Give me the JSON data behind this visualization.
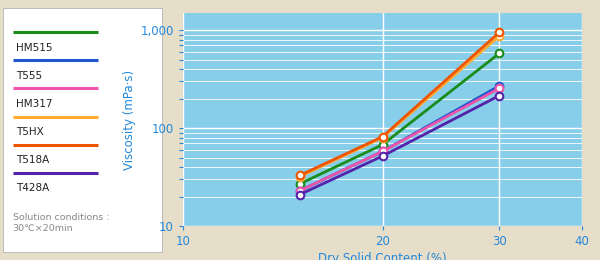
{
  "series": [
    {
      "label": "HM515",
      "color": "#1A8C1A",
      "x": [
        15,
        20,
        30
      ],
      "y": [
        27,
        68,
        580
      ]
    },
    {
      "label": "T555",
      "color": "#2255CC",
      "x": [
        15,
        20,
        30
      ],
      "y": [
        23,
        58,
        270
      ]
    },
    {
      "label": "HM317",
      "color": "#EE55AA",
      "x": [
        15,
        20,
        30
      ],
      "y": [
        23,
        58,
        255
      ]
    },
    {
      "label": "T5HX",
      "color": "#FFAA33",
      "x": [
        15,
        20,
        30
      ],
      "y": [
        32,
        80,
        870
      ]
    },
    {
      "label": "T518A",
      "color": "#EE5500",
      "x": [
        15,
        20,
        30
      ],
      "y": [
        33,
        82,
        950
      ]
    },
    {
      "label": "T428A",
      "color": "#5522AA",
      "x": [
        15,
        20,
        30
      ],
      "y": [
        21,
        52,
        215
      ]
    }
  ],
  "bg_color": "#87CEEB",
  "outer_bg": "#E6DEC8",
  "legend_bg": "#FFFFFF",
  "xlabel": "Dry Solid Content (%)",
  "ylabel": "Viscosity (mPa·s)",
  "xlim": [
    10,
    40
  ],
  "ylim": [
    10,
    1500
  ],
  "solution_note": "Solution conditions :\n30℃×20min",
  "grid_color": "#FFFFFF",
  "tick_color": "#2288DD",
  "axis_label_color": "#2288DD",
  "legend_entries": [
    [
      "HM515",
      "#1A8C1A"
    ],
    [
      "T555",
      "#2255CC"
    ],
    [
      "HM317",
      "#EE55AA"
    ],
    [
      "T5HX",
      "#FFAA33"
    ],
    [
      "T518A",
      "#EE5500"
    ],
    [
      "T428A",
      "#5522AA"
    ]
  ]
}
